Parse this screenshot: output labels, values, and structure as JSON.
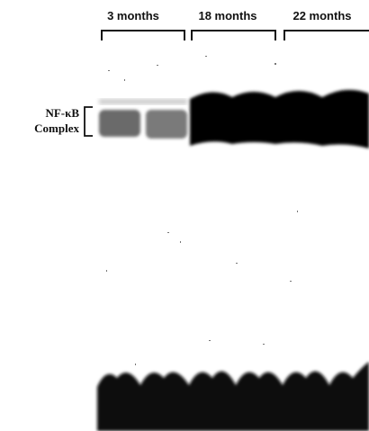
{
  "header": {
    "lanes": [
      "3 months",
      "18 months",
      "22 months"
    ]
  },
  "side_label": {
    "lines": [
      "NF-κB",
      "Complex"
    ]
  }
}
